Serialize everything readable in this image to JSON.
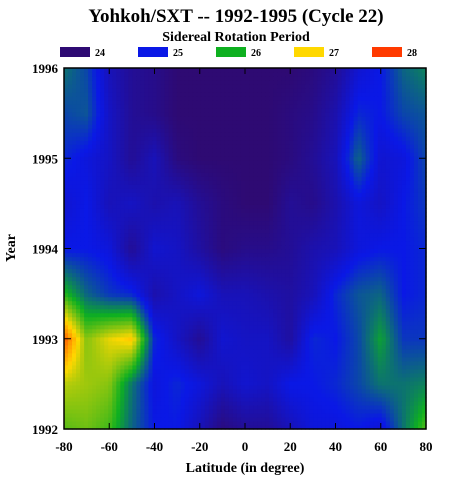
{
  "chart_data": {
    "type": "heatmap",
    "title": "Yohkoh/SXT -- 1992-1995 (Cycle 22)",
    "subtitle": "Sidereal Rotation Period",
    "xlabel": "Latitude (in degree)",
    "ylabel": "Year",
    "xlim": [
      -80,
      80
    ],
    "ylim": [
      1992,
      1996
    ],
    "x_ticks": [
      "-80",
      "-60",
      "-40",
      "-20",
      "0",
      "20",
      "40",
      "60",
      "80"
    ],
    "y_ticks": [
      "1992",
      "1993",
      "1994",
      "1995",
      "1996"
    ],
    "legend": {
      "placement": "top",
      "entries": [
        {
          "label": "24",
          "color": "#2e0a73"
        },
        {
          "label": "25",
          "color": "#0a18e6"
        },
        {
          "label": "26",
          "color": "#0eb020"
        },
        {
          "label": "27",
          "color": "#ffd800"
        },
        {
          "label": "28",
          "color": "#ff3a00"
        }
      ]
    },
    "x": [
      -80,
      -70,
      -60,
      -50,
      -40,
      -30,
      -20,
      -10,
      0,
      10,
      20,
      30,
      40,
      50,
      60,
      70,
      80
    ],
    "y": [
      1992.0,
      1992.5,
      1993.0,
      1993.5,
      1994.0,
      1994.5,
      1995.0,
      1995.5,
      1996.0
    ],
    "z": [
      [
        26.3,
        26.4,
        26.2,
        25.5,
        25.0,
        25.0,
        24.6,
        24.1,
        24.3,
        24.3,
        24.6,
        24.9,
        24.9,
        25.0,
        24.8,
        25.6,
        26.3
      ],
      [
        26.7,
        26.6,
        26.5,
        25.6,
        24.9,
        25.1,
        24.9,
        24.6,
        24.8,
        24.7,
        25.0,
        25.0,
        25.1,
        25.3,
        25.6,
        25.6,
        25.7
      ],
      [
        27.8,
        26.5,
        26.9,
        27.1,
        25.1,
        24.7,
        24.3,
        24.8,
        24.7,
        24.7,
        24.4,
        25.1,
        25.0,
        25.3,
        25.9,
        25.2,
        25.2
      ],
      [
        26.1,
        25.5,
        25.2,
        25.1,
        24.5,
        24.7,
        24.9,
        24.6,
        24.6,
        24.5,
        24.4,
        24.6,
        25.1,
        25.4,
        25.5,
        25.0,
        25.1
      ],
      [
        25.0,
        25.0,
        24.9,
        24.3,
        24.8,
        24.7,
        24.4,
        24.1,
        24.2,
        24.2,
        24.3,
        24.5,
        24.6,
        24.9,
        25.0,
        25.0,
        25.1
      ],
      [
        24.8,
        25.0,
        24.6,
        24.7,
        24.5,
        24.6,
        24.3,
        24.1,
        24.0,
        24.0,
        24.3,
        24.2,
        24.5,
        24.9,
        24.7,
        25.0,
        25.2
      ],
      [
        25.1,
        24.9,
        24.7,
        24.3,
        24.6,
        24.1,
        24.0,
        24.0,
        24.0,
        24.0,
        24.1,
        24.3,
        24.6,
        25.5,
        24.8,
        24.9,
        25.3
      ],
      [
        25.3,
        25.4,
        24.7,
        24.3,
        24.2,
        24.0,
        24.0,
        24.0,
        24.0,
        24.0,
        24.1,
        24.2,
        24.5,
        25.1,
        25.0,
        25.3,
        25.4
      ],
      [
        25.6,
        25.3,
        24.6,
        24.3,
        24.2,
        24.0,
        24.0,
        24.0,
        24.0,
        24.0,
        24.0,
        24.1,
        24.3,
        24.8,
        25.0,
        25.5,
        25.7
      ]
    ],
    "colorscale": [
      [
        24,
        "#2e0a73"
      ],
      [
        25,
        "#0a18e6"
      ],
      [
        26,
        "#0eb020"
      ],
      [
        27,
        "#ffd800"
      ],
      [
        28,
        "#ff3a00"
      ]
    ],
    "grid": false
  }
}
